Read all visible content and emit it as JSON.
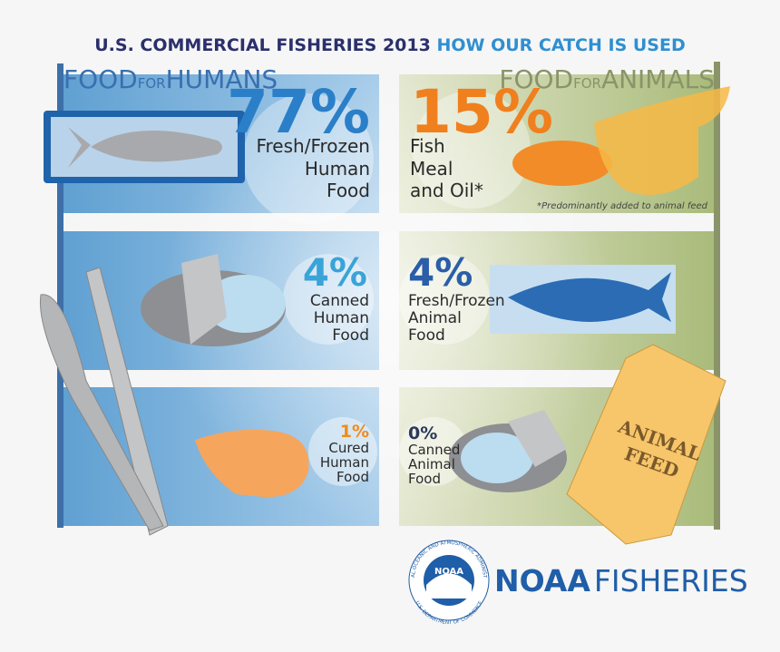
{
  "title": {
    "main": "U.S. COMMERCIAL FISHERIES 2013",
    "highlight": "HOW OUR CATCH IS USED"
  },
  "humans": {
    "heading": {
      "big1": "FOOD",
      "small": "FOR",
      "big2": "HUMANS"
    },
    "items": [
      {
        "percent": "77%",
        "label": [
          "Fresh/Frozen",
          "Human",
          "Food"
        ]
      },
      {
        "percent": "4%",
        "label": [
          "Canned",
          "Human",
          "Food"
        ]
      },
      {
        "percent": "1%",
        "label": [
          "Cured",
          "Human",
          "Food"
        ]
      }
    ]
  },
  "animals": {
    "heading": {
      "big1": "FOOD",
      "small": "FOR",
      "big2": "ANIMALS"
    },
    "items": [
      {
        "percent": "15%",
        "label": [
          "Fish",
          "Meal",
          "and Oil*"
        ]
      },
      {
        "percent": "4%",
        "label": [
          "Fresh/Frozen",
          "Animal",
          "Food"
        ]
      },
      {
        "percent": "0%",
        "label": [
          "Canned",
          "Animal",
          "Food"
        ]
      }
    ]
  },
  "footnote": "*Predominantly added to animal feed",
  "bag_label": [
    "ANIMAL",
    "FEED"
  ],
  "logo": {
    "badge": "NOAA",
    "ring_top": "NATIONAL OCEANIC AND ATMOSPHERIC ADMINISTRATION",
    "ring_bottom": "U.S. DEPARTMENT OF COMMERCE",
    "brand1": "NOAA",
    "brand2": "FISHERIES"
  }
}
